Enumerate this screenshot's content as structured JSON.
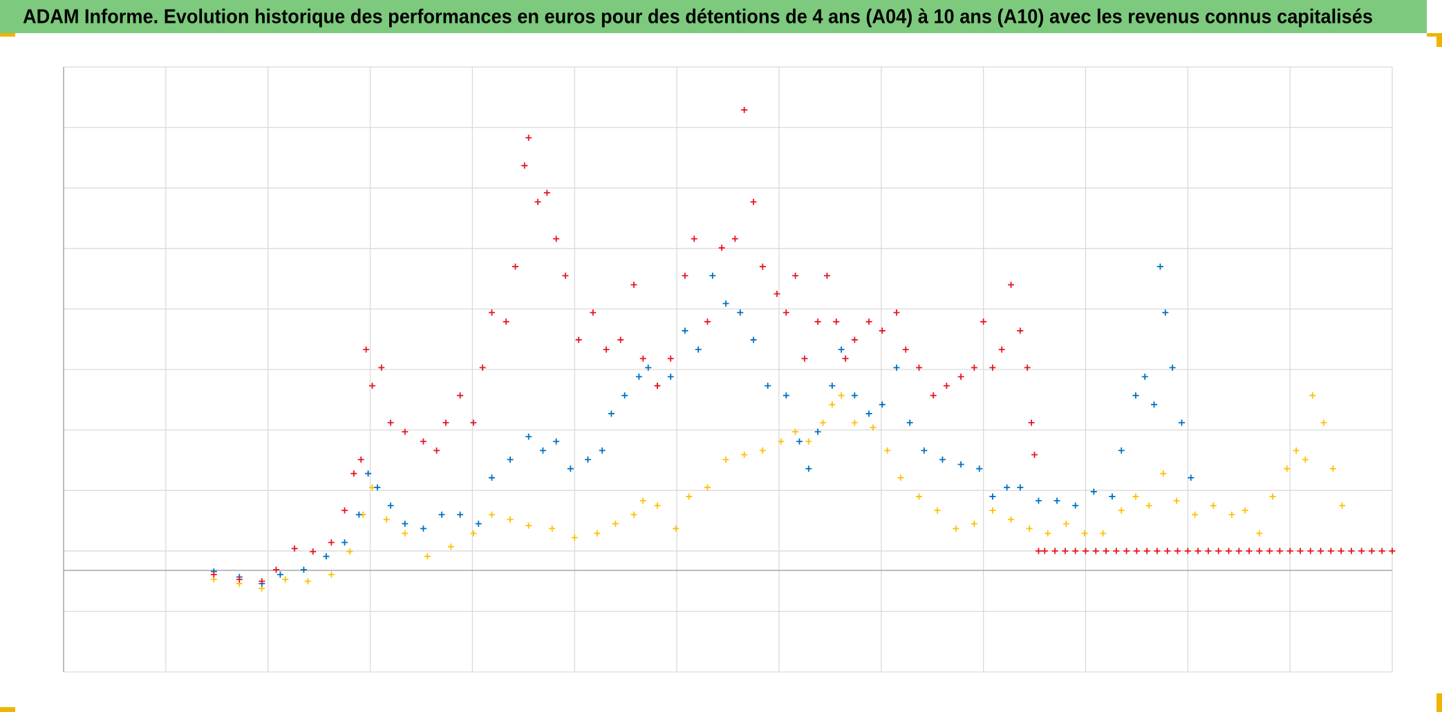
{
  "chart_data": {
    "type": "scatter",
    "title": "ADAM Informe. Evolution historique des performances en euros pour des détentions de 4 ans (A04) à 10 ans (A10) avec les revenus connus capitalisés",
    "xlim": [
      0,
      13
    ],
    "xticks": [
      0,
      1,
      2,
      3,
      4,
      5,
      6,
      7,
      8,
      9,
      10,
      11,
      12,
      13
    ],
    "ylim": [
      0,
      10
    ],
    "yticks": [
      0,
      1,
      2,
      3,
      4,
      5,
      6,
      7,
      8,
      9,
      10
    ],
    "xaxis_y": 1.68,
    "grid": true,
    "series": [
      {
        "color": "#ffc000",
        "x": [
          1.47,
          1.72,
          1.94,
          2.17,
          2.39,
          2.62,
          2.8,
          2.93,
          3.02,
          3.16,
          3.34,
          3.56,
          3.79,
          4.01,
          4.19,
          4.37,
          4.55,
          4.78,
          5.0,
          5.22,
          5.4,
          5.58,
          5.67,
          5.81,
          5.99,
          6.12,
          6.3,
          6.48,
          6.66,
          6.84,
          7.02,
          7.16,
          7.29,
          7.43,
          7.52,
          7.61,
          7.74,
          7.92,
          8.06,
          8.19,
          8.37,
          8.55,
          8.73,
          8.91,
          9.09,
          9.27,
          9.45,
          9.63,
          9.81,
          9.99,
          10.17,
          10.35,
          10.49,
          10.62,
          10.76,
          10.89,
          11.07,
          11.25,
          11.43,
          11.56,
          11.7,
          11.83,
          11.97,
          12.06,
          12.15,
          12.22,
          12.33,
          12.42,
          12.51
        ],
        "values": [
          1.53,
          1.46,
          1.38,
          1.53,
          1.5,
          1.61,
          1.99,
          2.6,
          3.05,
          2.52,
          2.29,
          1.91,
          2.07,
          2.29,
          2.6,
          2.52,
          2.42,
          2.37,
          2.22,
          2.29,
          2.45,
          2.6,
          2.83,
          2.75,
          2.37,
          2.9,
          3.05,
          3.51,
          3.59,
          3.66,
          3.81,
          3.97,
          3.81,
          4.12,
          4.42,
          4.57,
          4.12,
          4.04,
          3.66,
          3.21,
          2.9,
          2.67,
          2.37,
          2.45,
          2.67,
          2.52,
          2.37,
          2.29,
          2.45,
          2.29,
          2.29,
          2.67,
          2.9,
          2.75,
          3.28,
          2.83,
          2.6,
          2.75,
          2.6,
          2.67,
          2.29,
          2.9,
          3.36,
          3.66,
          3.51,
          4.57,
          4.12,
          3.36,
          2.75
        ]
      },
      {
        "color": "#0070c0",
        "x": [
          1.47,
          1.72,
          1.94,
          2.12,
          2.35,
          2.57,
          2.75,
          2.89,
          2.98,
          3.07,
          3.2,
          3.34,
          3.52,
          3.7,
          3.88,
          4.06,
          4.19,
          4.37,
          4.55,
          4.69,
          4.82,
          4.96,
          5.13,
          5.27,
          5.36,
          5.49,
          5.63,
          5.72,
          5.81,
          5.94,
          6.08,
          6.21,
          6.35,
          6.48,
          6.62,
          6.75,
          6.89,
          7.07,
          7.2,
          7.29,
          7.38,
          7.52,
          7.61,
          7.74,
          7.88,
          8.01,
          8.15,
          8.28,
          8.42,
          8.6,
          8.78,
          8.96,
          9.09,
          9.23,
          9.36,
          9.54,
          9.72,
          9.9,
          10.08,
          10.26,
          10.35,
          10.49,
          10.58,
          10.67,
          10.73,
          10.78,
          10.85,
          10.94,
          11.03
        ],
        "values": [
          1.66,
          1.57,
          1.46,
          1.61,
          1.69,
          1.91,
          2.14,
          2.6,
          3.28,
          3.05,
          2.75,
          2.45,
          2.37,
          2.6,
          2.6,
          2.45,
          3.21,
          3.51,
          3.89,
          3.66,
          3.81,
          3.36,
          3.51,
          3.66,
          4.27,
          4.57,
          4.88,
          5.03,
          4.73,
          4.88,
          5.64,
          5.33,
          6.55,
          6.09,
          5.94,
          5.49,
          4.73,
          4.57,
          3.81,
          3.36,
          3.97,
          4.73,
          5.33,
          4.57,
          4.27,
          4.42,
          5.03,
          4.12,
          3.66,
          3.51,
          3.43,
          3.36,
          2.9,
          3.05,
          3.05,
          2.83,
          2.83,
          2.75,
          2.98,
          2.9,
          3.66,
          4.57,
          4.88,
          4.42,
          6.7,
          5.94,
          5.03,
          4.12,
          3.21
        ]
      },
      {
        "color": "#e8141c",
        "x": [
          1.47,
          1.72,
          1.94,
          2.08,
          2.26,
          2.44,
          2.62,
          2.75,
          2.84,
          2.91,
          2.96,
          3.02,
          3.11,
          3.2,
          3.34,
          3.52,
          3.65,
          3.74,
          3.88,
          4.01,
          4.1,
          4.19,
          4.33,
          4.42,
          4.51,
          4.55,
          4.64,
          4.73,
          4.82,
          4.91,
          5.04,
          5.18,
          5.31,
          5.45,
          5.58,
          5.67,
          5.81,
          5.94,
          6.08,
          6.17,
          6.3,
          6.44,
          6.57,
          6.66,
          6.75,
          6.84,
          6.98,
          7.07,
          7.16,
          7.25,
          7.38,
          7.47,
          7.56,
          7.65,
          7.74,
          7.88,
          8.01,
          8.15,
          8.24,
          8.37,
          8.51,
          8.64,
          8.78,
          8.91,
          9.0,
          9.09,
          9.18,
          9.27,
          9.36,
          9.43,
          9.47,
          9.5,
          9.54,
          9.6,
          9.7,
          9.8,
          9.9,
          10.0,
          10.1,
          10.2,
          10.3,
          10.4,
          10.5,
          10.6,
          10.7,
          10.8,
          10.9,
          11.0,
          11.1,
          11.2,
          11.3,
          11.4,
          11.5,
          11.6,
          11.7,
          11.8,
          11.9,
          12.0,
          12.1,
          12.2,
          12.3,
          12.4,
          12.5,
          12.6,
          12.7,
          12.8,
          12.9,
          13.0
        ],
        "values": [
          1.61,
          1.53,
          1.5,
          1.69,
          2.04,
          1.99,
          2.14,
          2.67,
          3.28,
          3.51,
          5.33,
          4.73,
          5.03,
          4.12,
          3.97,
          3.81,
          3.66,
          4.12,
          4.57,
          4.12,
          5.03,
          5.94,
          5.79,
          6.7,
          8.37,
          8.83,
          7.77,
          7.92,
          7.16,
          6.55,
          5.49,
          5.94,
          5.33,
          5.49,
          6.4,
          5.18,
          4.73,
          5.18,
          6.55,
          7.16,
          5.79,
          7.01,
          7.16,
          9.29,
          7.77,
          6.7,
          6.25,
          5.94,
          6.55,
          5.18,
          5.79,
          6.55,
          5.79,
          5.18,
          5.49,
          5.79,
          5.64,
          5.94,
          5.33,
          5.03,
          4.57,
          4.73,
          4.88,
          5.03,
          5.79,
          5.03,
          5.33,
          6.4,
          5.64,
          5.03,
          4.12,
          3.59,
          2.0,
          2.0,
          2.0,
          2.0,
          2.0,
          2.0,
          2.0,
          2.0,
          2.0,
          2.0,
          2.0,
          2.0,
          2.0,
          2.0,
          2.0,
          2.0,
          2.0,
          2.0,
          2.0,
          2.0,
          2.0,
          2.0,
          2.0,
          2.0,
          2.0,
          2.0,
          2.0,
          2.0,
          2.0,
          2.0,
          2.0,
          2.0,
          2.0,
          2.0,
          2.0,
          2.0
        ]
      }
    ]
  }
}
